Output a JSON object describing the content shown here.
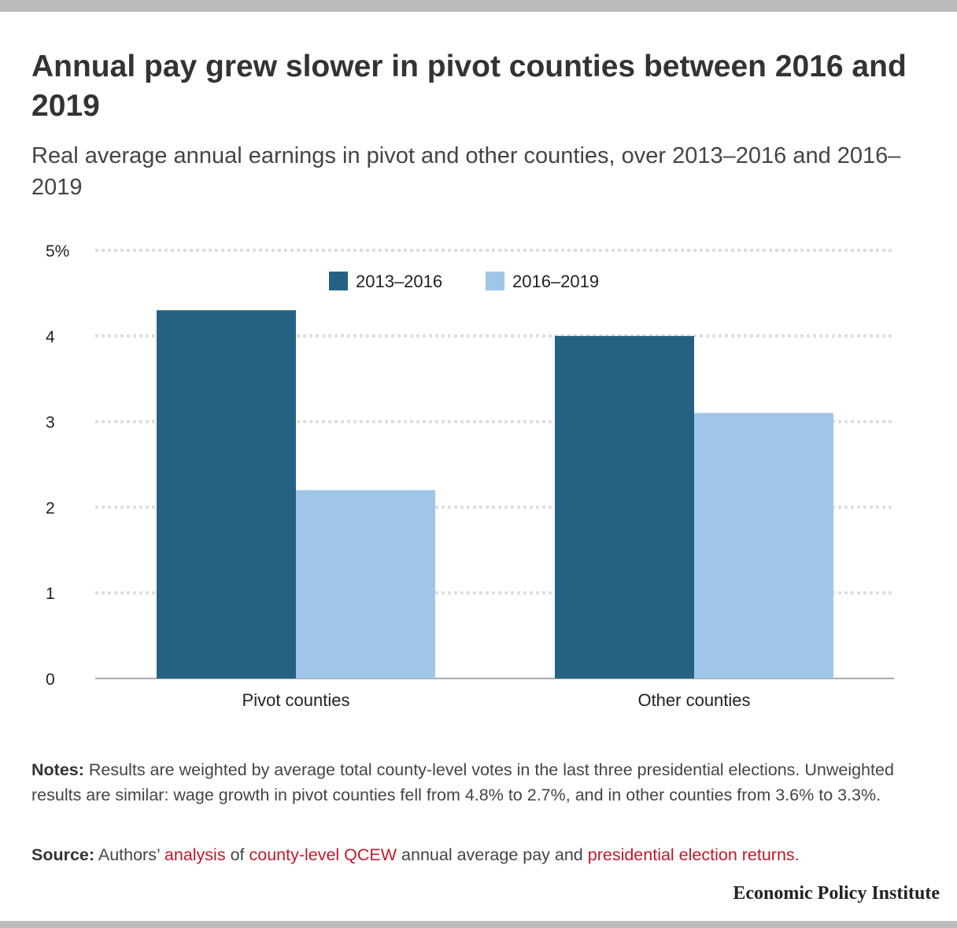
{
  "title": "Annual pay grew slower in pivot counties between 2016 and 2019",
  "subtitle": "Real average annual earnings in pivot and other counties, over 2013–2016 and 2016–2019",
  "chart_data": {
    "type": "bar",
    "categories": [
      "Pivot counties",
      "Other counties"
    ],
    "series": [
      {
        "name": "2013–2016",
        "values": [
          4.3,
          4.0
        ],
        "color": "#256183"
      },
      {
        "name": "2016–2019",
        "values": [
          2.2,
          3.1
        ],
        "color": "#9fc5e8"
      }
    ],
    "ylim": [
      0,
      5
    ],
    "yticks": [
      0,
      1,
      2,
      3,
      4,
      5
    ],
    "ytick_labels": [
      "0",
      "1",
      "2",
      "3",
      "4",
      "5%"
    ],
    "grid": true,
    "legend": "top-center"
  },
  "notes": {
    "label": "Notes:",
    "text": " Results are weighted by average total county-level votes in the last three presidential elections. Unweighted results are similar: wage growth in pivot counties fell from 4.8% to 2.7%, and in other counties from 3.6% to 3.3%."
  },
  "source": {
    "label": "Source:",
    "t1": " Authors’ ",
    "link1": "analysis",
    "t2": " of ",
    "link2": "county-level QCEW",
    "t3": " annual average pay and ",
    "link3": "presidential election returns."
  },
  "logo": "Economic Policy Institute"
}
